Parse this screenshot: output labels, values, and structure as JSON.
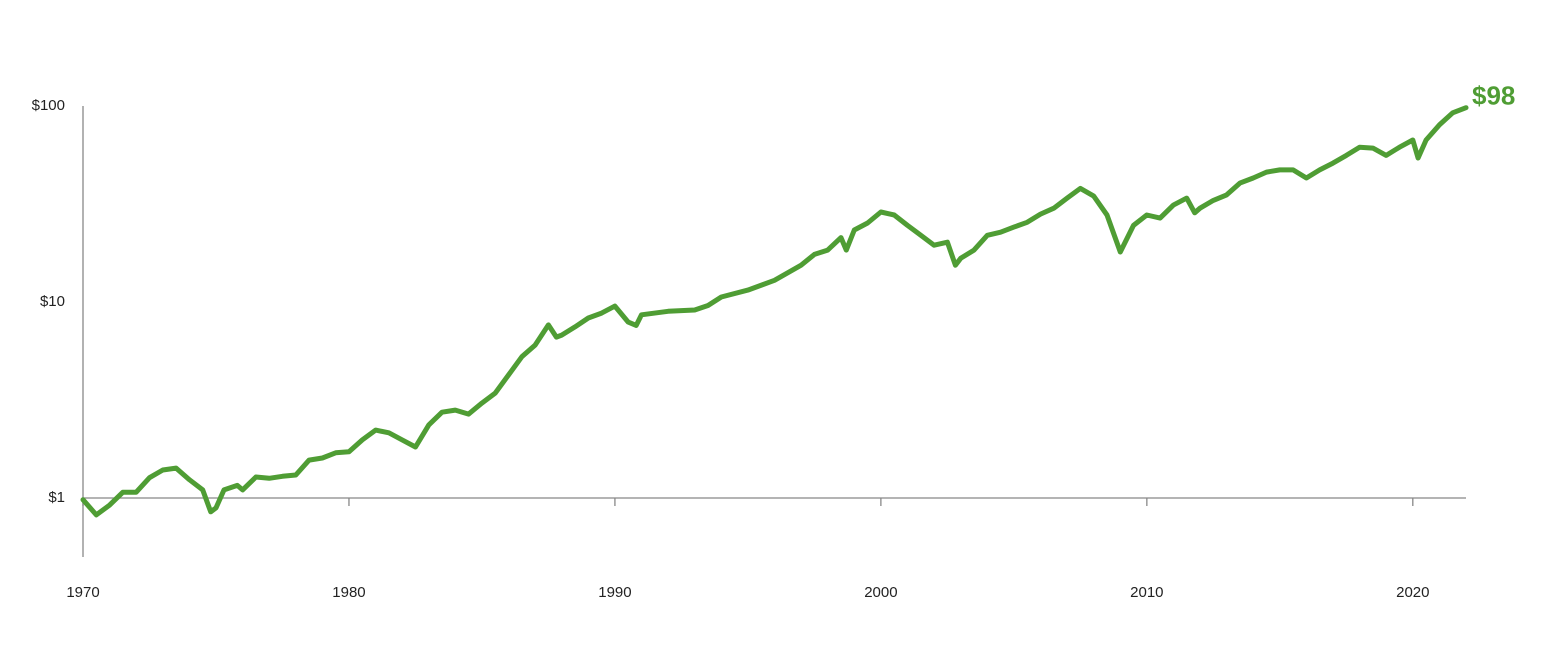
{
  "chart_data": {
    "type": "line",
    "yscale": "log",
    "color": "#4f9d34",
    "xlim": [
      1970,
      2022
    ],
    "xticks": [
      1970,
      1980,
      1990,
      2000,
      2010,
      2020
    ],
    "ylim": [
      0.5,
      100
    ],
    "yticks": [
      {
        "value": 1,
        "label": "$1"
      },
      {
        "value": 10,
        "label": "$10"
      },
      {
        "value": 100,
        "label": "$100"
      }
    ],
    "x": [
      1970.0,
      1970.5,
      1971.0,
      1971.5,
      1972.0,
      1972.5,
      1973.0,
      1973.5,
      1974.0,
      1974.5,
      1974.8,
      1975.0,
      1975.3,
      1975.8,
      1976.0,
      1976.5,
      1977.0,
      1977.5,
      1978.0,
      1978.5,
      1979.0,
      1979.5,
      1980.0,
      1980.5,
      1981.0,
      1981.5,
      1982.0,
      1982.5,
      1983.0,
      1983.5,
      1984.0,
      1984.5,
      1985.0,
      1985.5,
      1986.0,
      1986.5,
      1987.0,
      1987.5,
      1987.8,
      1988.0,
      1988.5,
      1989.0,
      1989.5,
      1990.0,
      1990.5,
      1990.8,
      1991.0,
      1992.0,
      1993.0,
      1993.5,
      1994.0,
      1995.0,
      1996.0,
      1997.0,
      1997.5,
      1998.0,
      1998.5,
      1998.7,
      1999.0,
      1999.5,
      2000.0,
      2000.5,
      2001.0,
      2001.5,
      2002.0,
      2002.5,
      2002.8,
      2003.0,
      2003.5,
      2004.0,
      2004.5,
      2005.0,
      2005.5,
      2006.0,
      2006.5,
      2007.0,
      2007.5,
      2008.0,
      2008.5,
      2009.0,
      2009.5,
      2010.0,
      2010.5,
      2011.0,
      2011.5,
      2011.8,
      2012.0,
      2012.5,
      2013.0,
      2013.5,
      2014.0,
      2014.5,
      2015.0,
      2015.5,
      2016.0,
      2016.5,
      2017.0,
      2017.5,
      2018.0,
      2018.5,
      2019.0,
      2019.5,
      2020.0,
      2020.2,
      2020.5,
      2021.0,
      2021.5,
      2022.0
    ],
    "values": [
      0.98,
      0.82,
      0.92,
      1.07,
      1.07,
      1.27,
      1.39,
      1.42,
      1.24,
      1.1,
      0.85,
      0.89,
      1.1,
      1.16,
      1.1,
      1.28,
      1.26,
      1.29,
      1.31,
      1.56,
      1.6,
      1.7,
      1.72,
      1.98,
      2.22,
      2.15,
      1.98,
      1.82,
      2.36,
      2.74,
      2.81,
      2.68,
      3.05,
      3.43,
      4.24,
      5.25,
      6.03,
      7.64,
      6.62,
      6.78,
      7.46,
      8.29,
      8.78,
      9.53,
      7.9,
      7.6,
      8.6,
      8.97,
      9.1,
      9.6,
      10.6,
      11.5,
      12.9,
      15.4,
      17.5,
      18.4,
      21.3,
      18.4,
      23.3,
      25.3,
      28.8,
      27.8,
      24.6,
      21.9,
      19.5,
      20.2,
      15.4,
      16.7,
      18.4,
      21.9,
      22.7,
      24.1,
      25.5,
      28.1,
      30.1,
      33.9,
      38.0,
      34.7,
      27.8,
      18.0,
      24.6,
      27.8,
      26.8,
      31.2,
      33.9,
      28.5,
      30.1,
      33.0,
      35.2,
      40.4,
      42.9,
      46.0,
      47.2,
      47.2,
      42.9,
      47.2,
      51.1,
      56.0,
      61.6,
      61.0,
      56.0,
      61.6,
      67.1,
      54.3,
      67.1,
      80.1,
      92.3,
      98
    ],
    "value_labels": [
      null,
      null,
      null,
      null,
      null,
      null,
      null,
      null,
      null,
      null,
      null,
      null,
      null,
      null,
      null,
      null,
      null,
      null,
      null,
      null,
      null,
      null,
      null,
      null,
      null,
      null,
      null,
      null,
      null,
      null,
      null,
      null,
      null,
      null,
      null,
      null,
      null,
      null,
      null,
      null,
      null,
      null,
      null,
      null,
      null,
      null,
      null,
      null,
      null,
      null,
      null,
      null,
      null,
      null,
      null,
      null,
      null,
      null,
      null,
      null,
      null,
      null,
      null,
      null,
      null,
      null,
      null,
      null,
      null,
      null,
      null,
      null,
      null,
      null,
      null,
      null,
      null,
      null,
      null,
      null,
      null,
      null,
      null,
      null,
      null,
      null,
      null,
      null,
      null,
      null,
      null,
      null,
      null,
      null,
      null,
      null,
      null,
      null,
      null,
      null,
      null,
      null,
      null,
      null,
      null,
      null,
      null,
      "$98"
    ]
  }
}
